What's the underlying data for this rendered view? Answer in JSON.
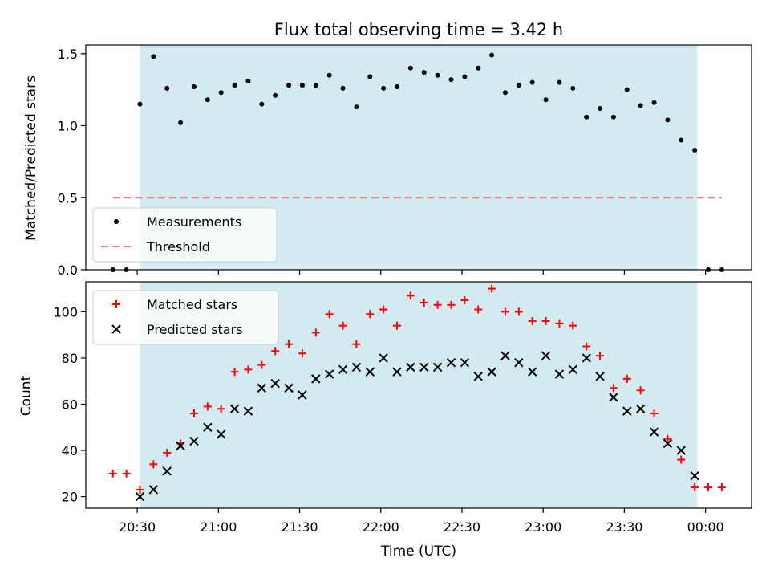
{
  "title": "Flux total observing time = 3.42 h",
  "chart_data": [
    {
      "type": "scatter",
      "title": "Flux total observing time = 3.42 h",
      "ylabel": "Matched/Predicted stars",
      "xlabel": "",
      "xlim": [
        "20:11",
        "00:17"
      ],
      "ylim": [
        0,
        1.56
      ],
      "yticks": [
        0,
        0.5,
        1.0,
        1.5
      ],
      "ytick_labels": [
        "0.0",
        "0.5",
        "1.0",
        "1.5"
      ],
      "xticks": [
        "20:30",
        "21:00",
        "21:30",
        "22:00",
        "22:30",
        "23:00",
        "23:30",
        "00:00"
      ],
      "shaded_interval": {
        "start": "20:31",
        "end": "23:57",
        "color": "#d3eaf0"
      },
      "legend": {
        "position": "lower-left",
        "entries": [
          "Measurements",
          "Threshold"
        ]
      },
      "grid": false,
      "series": [
        {
          "name": "Measurements",
          "marker": "dot",
          "color": "#000000",
          "x": [
            "20:21",
            "20:26",
            "20:31",
            "20:36",
            "20:41",
            "20:46",
            "20:51",
            "20:56",
            "21:01",
            "21:06",
            "21:11",
            "21:16",
            "21:21",
            "21:26",
            "21:31",
            "21:36",
            "21:41",
            "21:46",
            "21:51",
            "21:56",
            "22:01",
            "22:06",
            "22:11",
            "22:16",
            "22:21",
            "22:26",
            "22:31",
            "22:36",
            "22:41",
            "22:46",
            "22:51",
            "22:56",
            "23:01",
            "23:06",
            "23:11",
            "23:16",
            "23:21",
            "23:26",
            "23:31",
            "23:36",
            "23:41",
            "23:46",
            "23:51",
            "23:56",
            "00:01",
            "00:06"
          ],
          "y": [
            0,
            0,
            1.15,
            1.48,
            1.26,
            1.02,
            1.27,
            1.18,
            1.23,
            1.28,
            1.31,
            1.15,
            1.21,
            1.28,
            1.28,
            1.28,
            1.35,
            1.26,
            1.13,
            1.34,
            1.26,
            1.27,
            1.4,
            1.37,
            1.35,
            1.32,
            1.34,
            1.4,
            1.49,
            1.23,
            1.28,
            1.3,
            1.18,
            1.3,
            1.26,
            1.06,
            1.12,
            1.06,
            1.25,
            1.14,
            1.16,
            1.04,
            0.9,
            0.83,
            0,
            0
          ]
        },
        {
          "name": "Threshold",
          "style": "dashed",
          "color": "#f08080",
          "x": [
            "20:21",
            "00:06"
          ],
          "y": [
            0.5,
            0.5
          ]
        }
      ]
    },
    {
      "type": "scatter",
      "ylabel": "Count",
      "xlabel": "Time (UTC)",
      "xlim": [
        "20:11",
        "00:17"
      ],
      "ylim": [
        15,
        113
      ],
      "yticks": [
        20,
        40,
        60,
        80,
        100
      ],
      "xticks": [
        "20:30",
        "21:00",
        "21:30",
        "22:00",
        "22:30",
        "23:00",
        "23:30",
        "00:00"
      ],
      "shaded_interval": {
        "start": "20:31",
        "end": "23:57",
        "color": "#d3eaf0"
      },
      "legend": {
        "position": "top-left",
        "entries": [
          "Matched stars",
          "Predicted stars"
        ]
      },
      "grid": false,
      "series": [
        {
          "name": "Matched stars",
          "marker": "plus",
          "color": "#ff0000",
          "x": [
            "20:21",
            "20:26",
            "20:31",
            "20:36",
            "20:41",
            "20:46",
            "20:51",
            "20:56",
            "21:01",
            "21:06",
            "21:11",
            "21:16",
            "21:21",
            "21:26",
            "21:31",
            "21:36",
            "21:41",
            "21:46",
            "21:51",
            "21:56",
            "22:01",
            "22:06",
            "22:11",
            "22:16",
            "22:21",
            "22:26",
            "22:31",
            "22:36",
            "22:41",
            "22:46",
            "22:51",
            "22:56",
            "23:01",
            "23:06",
            "23:11",
            "23:16",
            "23:21",
            "23:26",
            "23:31",
            "23:36",
            "23:41",
            "23:46",
            "23:51",
            "23:56",
            "00:01",
            "00:06"
          ],
          "y": [
            30,
            30,
            23,
            34,
            39,
            43,
            56,
            59,
            58,
            74,
            75,
            77,
            83,
            86,
            82,
            91,
            99,
            94,
            86,
            99,
            101,
            94,
            107,
            104,
            103,
            103,
            105,
            101,
            110,
            100,
            100,
            96,
            96,
            95,
            94,
            85,
            81,
            67,
            71,
            66,
            56,
            45,
            36,
            24,
            24,
            24
          ]
        },
        {
          "name": "Predicted stars",
          "marker": "x",
          "color": "#000000",
          "x": [
            "20:31",
            "20:36",
            "20:41",
            "20:46",
            "20:51",
            "20:56",
            "21:01",
            "21:06",
            "21:11",
            "21:16",
            "21:21",
            "21:26",
            "21:31",
            "21:36",
            "21:41",
            "21:46",
            "21:51",
            "21:56",
            "22:01",
            "22:06",
            "22:11",
            "22:16",
            "22:21",
            "22:26",
            "22:31",
            "22:36",
            "22:41",
            "22:46",
            "22:51",
            "22:56",
            "23:01",
            "23:06",
            "23:11",
            "23:16",
            "23:21",
            "23:26",
            "23:31",
            "23:36",
            "23:41",
            "23:46",
            "23:51",
            "23:56"
          ],
          "y": [
            20,
            23,
            31,
            42,
            44,
            50,
            47,
            58,
            57,
            67,
            69,
            67,
            64,
            71,
            73,
            75,
            76,
            74,
            80,
            74,
            76,
            76,
            76,
            78,
            78,
            72,
            74,
            81,
            78,
            74,
            81,
            73,
            75,
            80,
            72,
            63,
            57,
            58,
            48,
            43,
            40,
            29
          ]
        }
      ]
    }
  ]
}
